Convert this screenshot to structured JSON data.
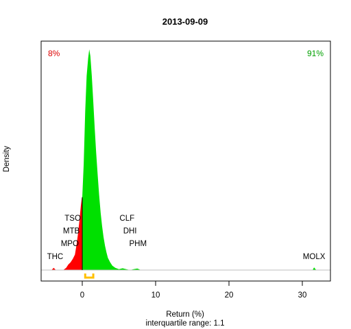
{
  "chart_data": {
    "type": "area",
    "title": "2013-09-09",
    "xlabel": "Return (%)",
    "ylabel": "Density",
    "subtitle_prefix": "interquartile range: ",
    "interquartile_range": "1.1",
    "interquartile_range_interval": [
      0.4,
      1.5
    ],
    "xlim": [
      -5.5,
      33.5
    ],
    "ylim": [
      0,
      1.0
    ],
    "x_ticks": [
      0,
      10,
      20,
      30
    ],
    "negative_share_label": "8%",
    "positive_share_label": "91%",
    "colors": {
      "negative": "#ff0000",
      "positive": "#00e000",
      "iqr": "#ffc000",
      "baseline": "#bebebe",
      "negative_text": "#dd0000",
      "positive_text": "#00a000"
    },
    "series": [
      {
        "values": [
          [
            -4.2,
            0.0
          ],
          [
            -3.9,
            0.01
          ],
          [
            -3.6,
            0.0
          ],
          [
            -2.6,
            0.0
          ],
          [
            -2.2,
            0.01
          ],
          [
            -1.9,
            0.025
          ],
          [
            -1.6,
            0.035
          ],
          [
            -1.3,
            0.05
          ],
          [
            -1.0,
            0.07
          ],
          [
            -0.8,
            0.11
          ],
          [
            -0.6,
            0.16
          ],
          [
            -0.4,
            0.22
          ],
          [
            -0.2,
            0.29
          ],
          [
            -0.05,
            0.33
          ],
          [
            0.0,
            0.33
          ],
          [
            0.2,
            0.48
          ],
          [
            0.4,
            0.72
          ],
          [
            0.6,
            0.88
          ],
          [
            0.8,
            0.96
          ],
          [
            0.95,
            1.0
          ],
          [
            1.1,
            0.97
          ],
          [
            1.3,
            0.88
          ],
          [
            1.5,
            0.76
          ],
          [
            1.7,
            0.64
          ],
          [
            1.9,
            0.53
          ],
          [
            2.1,
            0.43
          ],
          [
            2.3,
            0.34
          ],
          [
            2.5,
            0.26
          ],
          [
            2.7,
            0.2
          ],
          [
            2.9,
            0.15
          ],
          [
            3.1,
            0.11
          ],
          [
            3.3,
            0.08
          ],
          [
            3.5,
            0.055
          ],
          [
            3.8,
            0.035
          ],
          [
            4.1,
            0.02
          ],
          [
            4.5,
            0.01
          ],
          [
            5.0,
            0.004
          ],
          [
            5.5,
            0.008
          ],
          [
            6.0,
            0.004
          ],
          [
            6.5,
            0.0
          ],
          [
            7.0,
            0.004
          ],
          [
            7.5,
            0.007
          ],
          [
            8.0,
            0.0
          ],
          [
            31.4,
            0.0
          ],
          [
            31.6,
            0.012
          ],
          [
            31.9,
            0.0
          ]
        ]
      }
    ],
    "annotations": [
      {
        "text": "THC",
        "x": -3.7,
        "y": 0.05
      },
      {
        "text": "MPO",
        "x": -1.7,
        "y": 0.108
      },
      {
        "text": "MTB",
        "x": -1.5,
        "y": 0.166
      },
      {
        "text": "TSO",
        "x": -1.3,
        "y": 0.224
      },
      {
        "text": "PHM",
        "x": 7.6,
        "y": 0.108
      },
      {
        "text": "DHI",
        "x": 6.5,
        "y": 0.166
      },
      {
        "text": "CLF",
        "x": 6.1,
        "y": 0.224
      },
      {
        "text": "MOLX",
        "x": 31.6,
        "y": 0.05
      }
    ]
  }
}
